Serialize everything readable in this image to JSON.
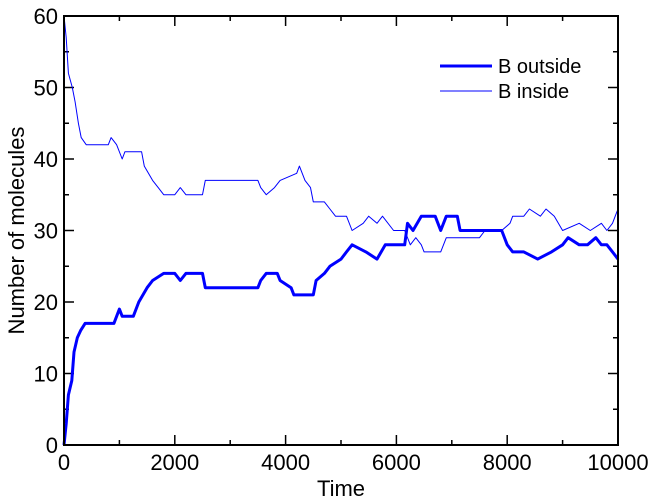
{
  "chart_data": {
    "type": "line",
    "title": "",
    "xlabel": "Time",
    "ylabel": "Number of molecules",
    "xlim": [
      0,
      10000
    ],
    "ylim": [
      0,
      60
    ],
    "xticks": [
      0,
      2000,
      4000,
      6000,
      8000,
      10000
    ],
    "xtick_labels": [
      "0",
      "2000",
      "4000",
      "6000",
      "8000",
      "10000"
    ],
    "yticks": [
      0,
      10,
      20,
      30,
      40,
      50,
      60
    ],
    "ytick_labels": [
      "0",
      "10",
      "20",
      "30",
      "40",
      "50",
      "60"
    ],
    "grid": false,
    "legend_position": "top-right",
    "series": [
      {
        "name": "B outside",
        "color": "#0000ff",
        "style": "thick",
        "points": [
          [
            0,
            0
          ],
          [
            40,
            3
          ],
          [
            80,
            7
          ],
          [
            140,
            9
          ],
          [
            180,
            13
          ],
          [
            240,
            15
          ],
          [
            300,
            16
          ],
          [
            380,
            17
          ],
          [
            900,
            17
          ],
          [
            1000,
            19
          ],
          [
            1050,
            18
          ],
          [
            1250,
            18
          ],
          [
            1350,
            20
          ],
          [
            1500,
            22
          ],
          [
            1600,
            23
          ],
          [
            1800,
            24
          ],
          [
            2000,
            24
          ],
          [
            2100,
            23
          ],
          [
            2200,
            24
          ],
          [
            2500,
            24
          ],
          [
            2550,
            22
          ],
          [
            3000,
            22
          ],
          [
            3500,
            22
          ],
          [
            3550,
            23
          ],
          [
            3650,
            24
          ],
          [
            3850,
            24
          ],
          [
            3900,
            23
          ],
          [
            4100,
            22
          ],
          [
            4150,
            21
          ],
          [
            4500,
            21
          ],
          [
            4550,
            23
          ],
          [
            4700,
            24
          ],
          [
            4800,
            25
          ],
          [
            5000,
            26
          ],
          [
            5100,
            27
          ],
          [
            5200,
            28
          ],
          [
            5450,
            27
          ],
          [
            5650,
            26
          ],
          [
            5800,
            28
          ],
          [
            6150,
            28
          ],
          [
            6200,
            31
          ],
          [
            6300,
            30
          ],
          [
            6450,
            32
          ],
          [
            6700,
            32
          ],
          [
            6800,
            30
          ],
          [
            6900,
            32
          ],
          [
            7100,
            32
          ],
          [
            7150,
            30
          ],
          [
            7900,
            30
          ],
          [
            8000,
            28
          ],
          [
            8100,
            27
          ],
          [
            8300,
            27
          ],
          [
            8550,
            26
          ],
          [
            8800,
            27
          ],
          [
            9000,
            28
          ],
          [
            9100,
            29
          ],
          [
            9300,
            28
          ],
          [
            9450,
            28
          ],
          [
            9600,
            29
          ],
          [
            9700,
            28
          ],
          [
            9800,
            28
          ],
          [
            9900,
            27
          ],
          [
            10000,
            26
          ]
        ]
      },
      {
        "name": "B inside",
        "color": "#0000ff",
        "style": "thin",
        "points": [
          [
            0,
            60
          ],
          [
            40,
            57
          ],
          [
            80,
            52
          ],
          [
            150,
            50
          ],
          [
            200,
            48
          ],
          [
            260,
            45
          ],
          [
            310,
            43
          ],
          [
            400,
            42
          ],
          [
            800,
            42
          ],
          [
            850,
            43
          ],
          [
            950,
            42
          ],
          [
            1050,
            40
          ],
          [
            1100,
            41
          ],
          [
            1400,
            41
          ],
          [
            1450,
            39
          ],
          [
            1600,
            37
          ],
          [
            1700,
            36
          ],
          [
            1800,
            35
          ],
          [
            2000,
            35
          ],
          [
            2100,
            36
          ],
          [
            2200,
            35
          ],
          [
            2500,
            35
          ],
          [
            2550,
            37
          ],
          [
            3500,
            37
          ],
          [
            3550,
            36
          ],
          [
            3650,
            35
          ],
          [
            3800,
            36
          ],
          [
            3900,
            37
          ],
          [
            4200,
            38
          ],
          [
            4250,
            39
          ],
          [
            4350,
            37
          ],
          [
            4450,
            36
          ],
          [
            4500,
            34
          ],
          [
            4700,
            34
          ],
          [
            4800,
            33
          ],
          [
            4900,
            32
          ],
          [
            5100,
            32
          ],
          [
            5200,
            30
          ],
          [
            5400,
            31
          ],
          [
            5500,
            32
          ],
          [
            5650,
            31
          ],
          [
            5750,
            32
          ],
          [
            5950,
            30
          ],
          [
            6150,
            30
          ],
          [
            6250,
            28
          ],
          [
            6350,
            29
          ],
          [
            6450,
            28
          ],
          [
            6500,
            27
          ],
          [
            6800,
            27
          ],
          [
            6900,
            29
          ],
          [
            7500,
            29
          ],
          [
            7600,
            30
          ],
          [
            7900,
            30
          ],
          [
            8050,
            31
          ],
          [
            8100,
            32
          ],
          [
            8300,
            32
          ],
          [
            8400,
            33
          ],
          [
            8600,
            32
          ],
          [
            8700,
            33
          ],
          [
            8850,
            32
          ],
          [
            9000,
            30
          ],
          [
            9300,
            31
          ],
          [
            9500,
            30
          ],
          [
            9700,
            31
          ],
          [
            9800,
            30
          ],
          [
            9900,
            31
          ],
          [
            9950,
            32
          ],
          [
            10000,
            33
          ]
        ]
      }
    ]
  }
}
